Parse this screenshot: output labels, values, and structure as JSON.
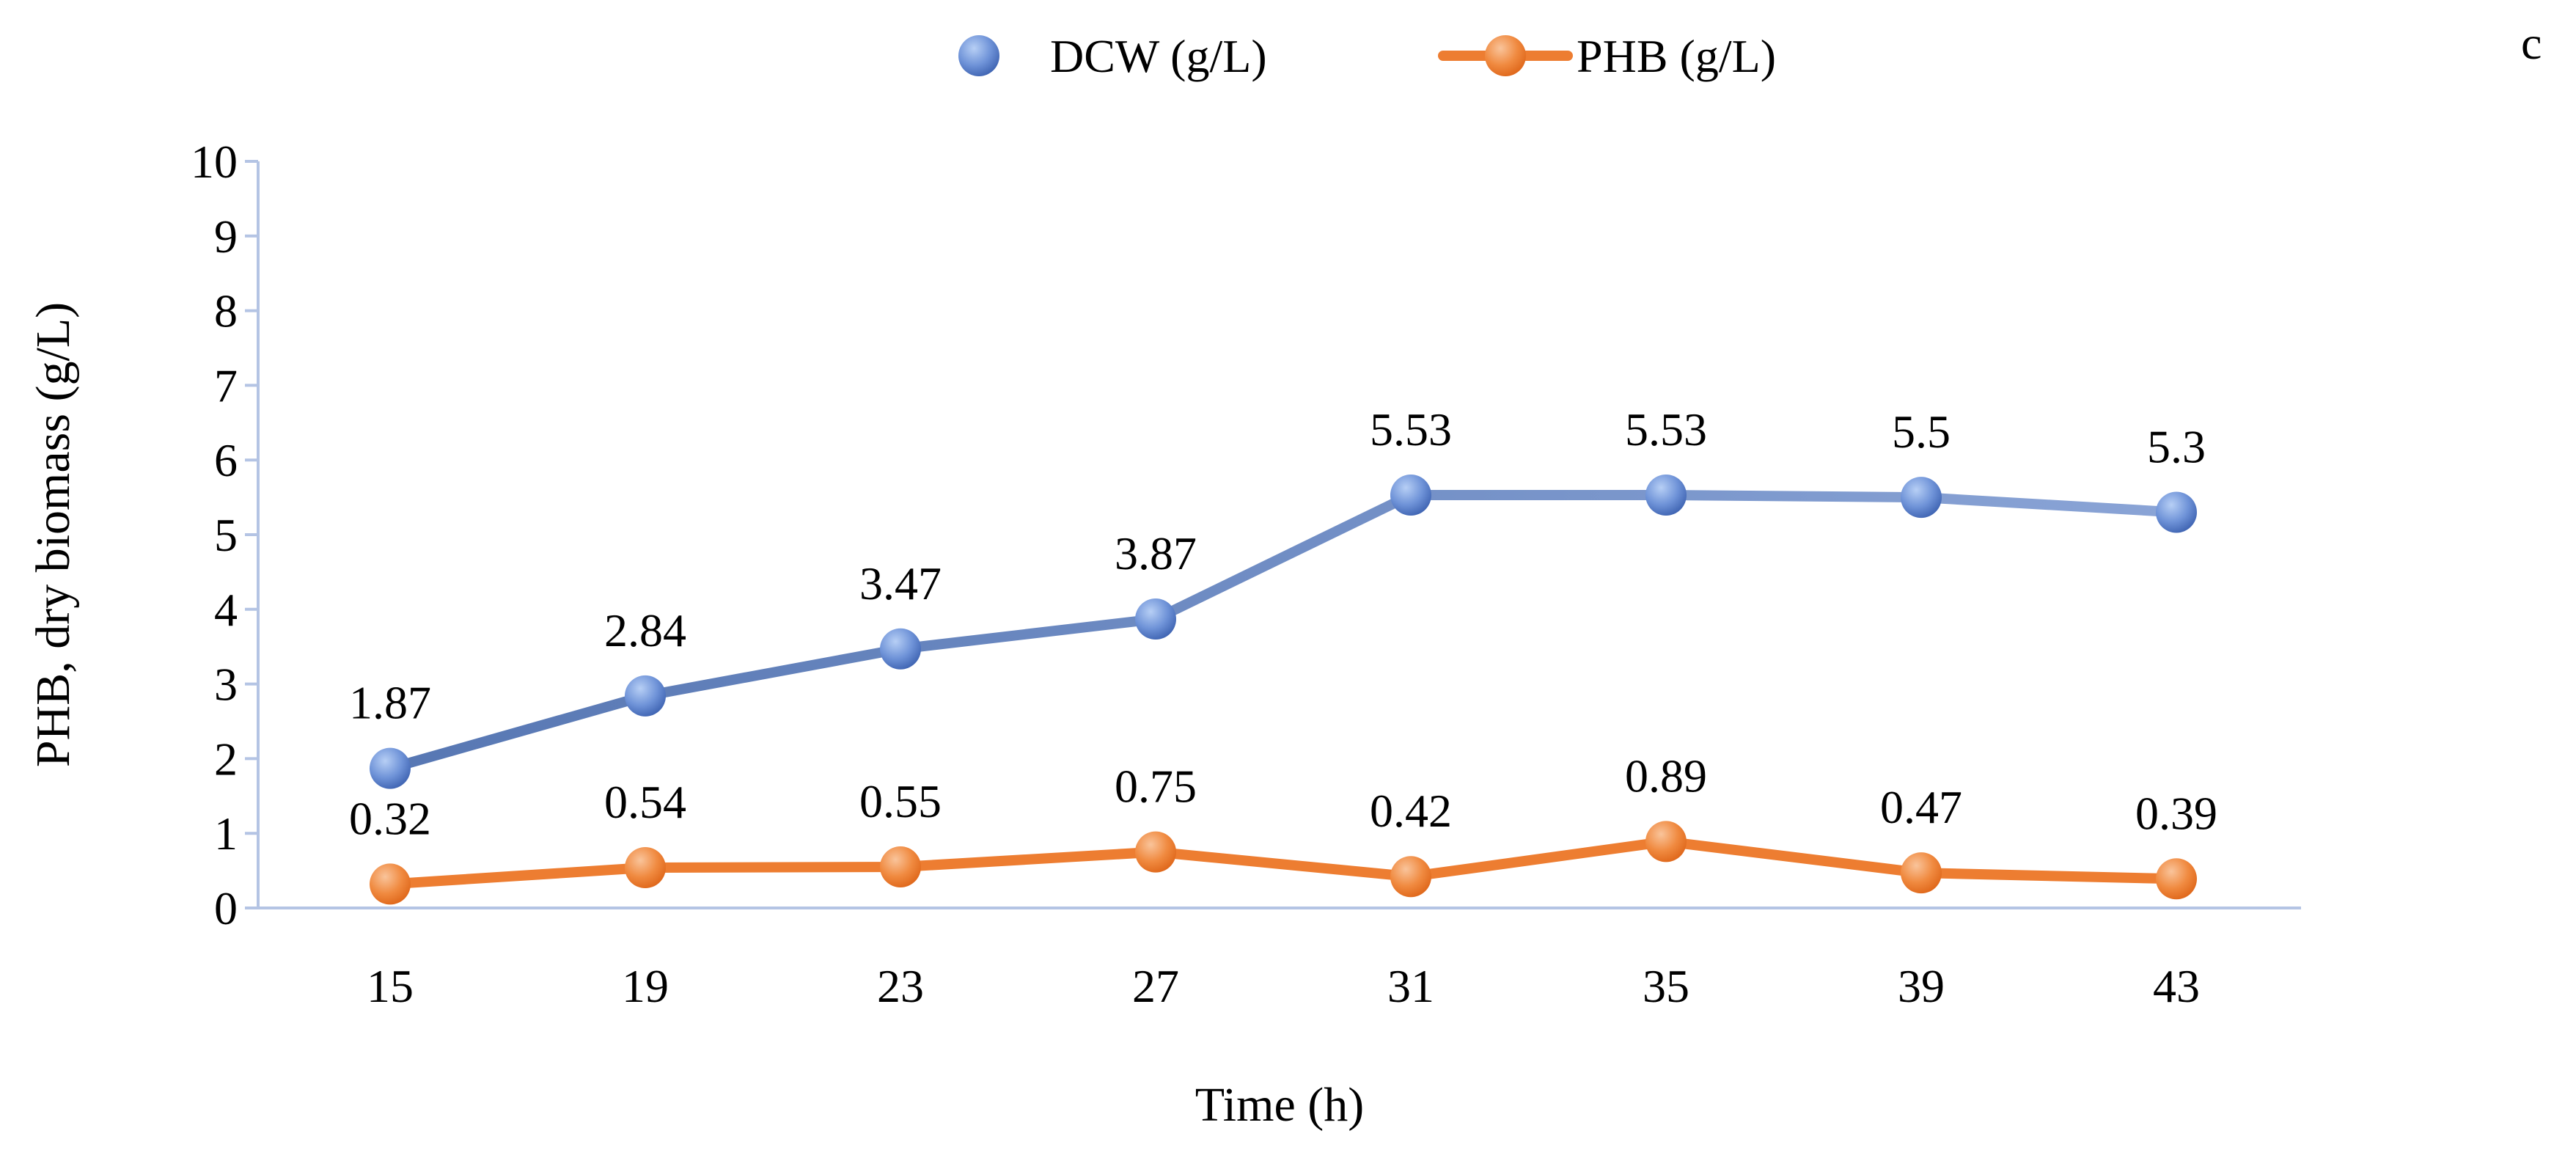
{
  "panel_label": "c",
  "colors": {
    "dcw_line": "#6f8bc2",
    "dcw_marker_light": "#a9c4f2",
    "dcw_marker_dark": "#3f66b8",
    "phb_line": "#ed7d31",
    "phb_marker_light": "#f7b98a",
    "phb_marker_dark": "#e56a1c",
    "axis": "#b4c4e4"
  },
  "chart_data": {
    "type": "line",
    "title": "",
    "xlabel": "Time (h)",
    "ylabel": "PHB, dry biomass (g/L)",
    "categories": [
      "15",
      "19",
      "23",
      "27",
      "31",
      "35",
      "39",
      "43"
    ],
    "ylim": [
      0,
      10
    ],
    "yticks": [
      "0",
      "1",
      "2",
      "3",
      "4",
      "5",
      "6",
      "7",
      "8",
      "9",
      "10"
    ],
    "grid": false,
    "legend_position": "top-center",
    "series": [
      {
        "name": "DCW (g/L)",
        "values": [
          1.87,
          2.84,
          3.47,
          3.87,
          5.53,
          5.53,
          5.5,
          5.3
        ],
        "labels": [
          "1.87",
          "2.84",
          "3.47",
          "3.87",
          "5.53",
          "5.53",
          "5.5",
          "5.3"
        ]
      },
      {
        "name": "PHB (g/L)",
        "values": [
          0.32,
          0.54,
          0.55,
          0.75,
          0.42,
          0.89,
          0.47,
          0.39
        ],
        "labels": [
          "0.32",
          "0.54",
          "0.55",
          "0.75",
          "0.42",
          "0.89",
          "0.47",
          "0.39"
        ]
      }
    ]
  }
}
